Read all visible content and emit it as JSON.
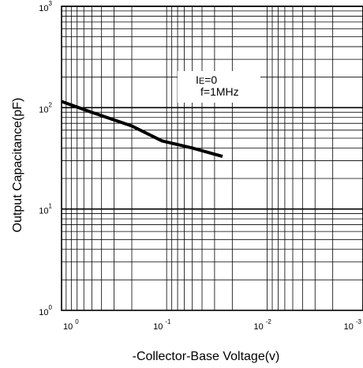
{
  "chart_data": {
    "type": "line",
    "xlabel": "-Collector-Base Voltage(v)",
    "ylabel": "Output Capacitance(pF)",
    "x_scale": "log",
    "y_scale": "log",
    "xlim": [
      1,
      0.001
    ],
    "ylim": [
      1,
      1000
    ],
    "grid": true,
    "x_ticks": [
      {
        "value": 1,
        "base": "10",
        "exp": "0"
      },
      {
        "value": 0.1,
        "base": "10",
        "exp": "-1"
      },
      {
        "value": 0.01,
        "base": "10",
        "exp": "-2"
      },
      {
        "value": 0.001,
        "base": "10",
        "exp": "-3"
      }
    ],
    "y_ticks": [
      {
        "value": 1,
        "base": "10",
        "exp": "0"
      },
      {
        "value": 10,
        "base": "10",
        "exp": "1"
      },
      {
        "value": 100,
        "base": "10",
        "exp": "2"
      },
      {
        "value": 1000,
        "base": "10",
        "exp": "3"
      }
    ],
    "annotations": [
      {
        "text_main": "I",
        "text_sub": "E",
        "text_rest": "=0"
      },
      {
        "text_main": "f=1MHz"
      }
    ],
    "series": [
      {
        "x": [
          1,
          0.5,
          0.2,
          0.1,
          0.05,
          0.025
        ],
        "y": [
          115,
          90,
          66,
          47,
          40,
          33
        ]
      }
    ]
  }
}
